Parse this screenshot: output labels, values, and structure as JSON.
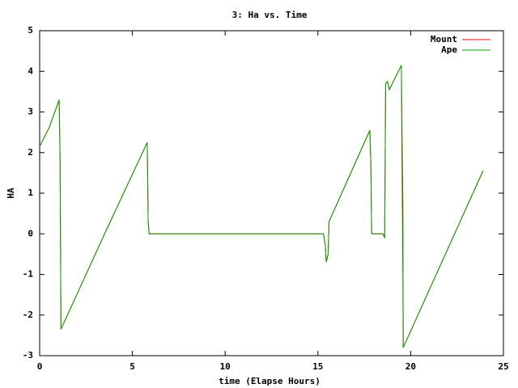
{
  "chart_data": {
    "type": "line",
    "title": "3: Ha vs. Time",
    "x_label": "time (Elapse Hours)",
    "y_label": "HA",
    "x": [
      0,
      0.5,
      1.05,
      1.1,
      1.15,
      3.4,
      5.8,
      5.85,
      5.9,
      15.3,
      15.4,
      15.45,
      15.55,
      15.6,
      17.8,
      17.85,
      17.9,
      18.5,
      18.6,
      18.65,
      18.75,
      18.85,
      19.5,
      19.52,
      19.58,
      19.6,
      23.9
    ],
    "series": [
      {
        "name": "Mount",
        "color": "#ff0000",
        "values": [
          2.15,
          2.6,
          3.3,
          1.9,
          -2.35,
          -0.1,
          2.25,
          0.3,
          0,
          0,
          -0.3,
          -0.7,
          -0.5,
          0.3,
          2.55,
          1.8,
          0,
          0,
          -0.1,
          3.7,
          3.75,
          3.55,
          4.15,
          3.0,
          0.75,
          -2.8,
          1.55
        ]
      },
      {
        "name": "Ape",
        "color": "#00a000",
        "values": [
          2.15,
          2.6,
          3.3,
          1.9,
          -2.35,
          -0.1,
          2.25,
          0.3,
          0,
          0,
          -0.3,
          -0.7,
          -0.5,
          0.3,
          2.55,
          1.8,
          0,
          0,
          -0.1,
          3.7,
          3.75,
          3.55,
          4.15,
          2.4,
          -1.0,
          -2.8,
          1.55
        ]
      }
    ],
    "xlim": [
      0,
      25
    ],
    "xticks": [
      0,
      5,
      10,
      15,
      20,
      25
    ],
    "ylim": [
      -3,
      5
    ],
    "yticks": [
      -3,
      -2,
      -1,
      0,
      1,
      2,
      3,
      4,
      5
    ],
    "legend": "top-right"
  }
}
